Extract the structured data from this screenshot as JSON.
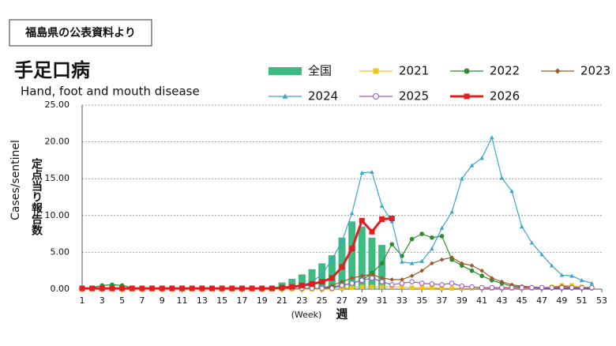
{
  "source_note": "福島県の公表資料より",
  "chart_data": {
    "type": "line",
    "title": "手足口病",
    "subtitle": "Hand, foot and mouth disease",
    "y_label": "Cases/sentinel",
    "y_label_ja": "定点当り報告数",
    "x_label": "(Week)",
    "x_label_ja": "週",
    "x": [
      1,
      2,
      3,
      4,
      5,
      6,
      7,
      8,
      9,
      10,
      11,
      12,
      13,
      14,
      15,
      16,
      17,
      18,
      19,
      20,
      21,
      22,
      23,
      24,
      25,
      26,
      27,
      28,
      29,
      30,
      31,
      32,
      33,
      34,
      35,
      36,
      37,
      38,
      39,
      40,
      41,
      42,
      43,
      44,
      45,
      46,
      47,
      48,
      49,
      50,
      51,
      52
    ],
    "xlim": [
      1,
      53
    ],
    "xticks": [
      1,
      3,
      5,
      7,
      9,
      11,
      13,
      15,
      17,
      19,
      21,
      23,
      25,
      27,
      29,
      31,
      33,
      35,
      37,
      39,
      41,
      43,
      45,
      47,
      49,
      51,
      53
    ],
    "ylim": [
      0,
      25
    ],
    "yticks": [
      {
        "value": 0,
        "label": "0.00"
      },
      {
        "value": 5,
        "label": "5.00"
      },
      {
        "value": 10,
        "label": "10.00"
      },
      {
        "value": 15,
        "label": "15.00"
      },
      {
        "value": 20,
        "label": "20.00"
      },
      {
        "value": 25,
        "label": "25.00"
      }
    ],
    "grid": true,
    "series": [
      {
        "name": "全国",
        "color": "#3dbb83",
        "marker": "bar",
        "values": [
          0.1,
          0.1,
          0.1,
          0.1,
          0.1,
          0.1,
          0.1,
          0.1,
          0.1,
          0.1,
          0.1,
          0.1,
          0.1,
          0.1,
          0.1,
          0.1,
          0.1,
          0.1,
          0.1,
          0.3,
          0.9,
          1.4,
          2.0,
          2.7,
          3.5,
          4.6,
          7.0,
          9.2,
          8.5,
          7.0,
          6.0,
          null,
          null,
          null,
          null,
          null,
          null,
          null,
          null,
          null,
          null,
          null,
          null,
          null,
          null,
          null,
          null,
          null,
          null,
          null,
          null,
          null
        ]
      },
      {
        "name": "2021",
        "color": "#f2c21b",
        "marker": "square",
        "values": [
          0,
          0,
          0,
          0,
          0,
          0,
          0,
          0,
          0,
          0,
          0,
          0,
          0,
          0,
          0,
          0,
          0,
          0,
          0,
          0,
          0,
          0,
          0,
          0,
          0,
          0,
          0.1,
          0.2,
          0.3,
          0.3,
          0.3,
          0.3,
          0.3,
          0.2,
          0.2,
          0.2,
          0.1,
          0.1,
          0.1,
          0.1,
          0.1,
          0.1,
          0.1,
          0.1,
          0.1,
          0.1,
          0.2,
          0.3,
          0.5,
          0.5,
          0.3,
          0.2
        ]
      },
      {
        "name": "2022",
        "color": "#2e8b2e",
        "marker": "circle",
        "values": [
          0.1,
          0.2,
          0.5,
          0.6,
          0.5,
          0.2,
          0.1,
          0.1,
          0.1,
          0.1,
          0.1,
          0.1,
          0.1,
          0.1,
          0.1,
          0.1,
          0.1,
          0.1,
          0.1,
          0.1,
          0.1,
          0.1,
          0.1,
          0.1,
          0.1,
          0.3,
          0.5,
          0.8,
          1.2,
          2.2,
          3.5,
          6.1,
          4.5,
          6.8,
          7.5,
          7.0,
          7.2,
          4.0,
          3.2,
          2.5,
          1.8,
          1.2,
          0.8,
          0.4,
          0.3,
          0.2,
          0.1,
          0.1,
          0.1,
          0.1,
          0.1,
          0.1
        ]
      },
      {
        "name": "2023",
        "color": "#9c5a28",
        "marker": "diamond",
        "values": [
          0.1,
          0.1,
          0.1,
          0.1,
          0.1,
          0.1,
          0.1,
          0.1,
          0.1,
          0.1,
          0.1,
          0.1,
          0.1,
          0.1,
          0.1,
          0.1,
          0.1,
          0.1,
          0.1,
          0.1,
          0.1,
          0.1,
          0.1,
          0.1,
          0.1,
          0.5,
          1.0,
          1.5,
          1.8,
          2.0,
          1.5,
          1.3,
          1.3,
          1.8,
          2.5,
          3.5,
          4.0,
          4.3,
          3.5,
          3.2,
          2.5,
          1.5,
          1.0,
          0.6,
          0.4,
          0.3,
          0.2,
          0.2,
          0.4,
          0.3,
          0.2,
          0.2
        ]
      },
      {
        "name": "2024",
        "color": "#3aa6c8",
        "marker": "triangle",
        "values": [
          0.1,
          0.1,
          0.1,
          0.1,
          0.1,
          0.1,
          0.1,
          0.1,
          0.1,
          0.1,
          0.1,
          0.1,
          0.1,
          0.1,
          0.1,
          0.1,
          0.1,
          0.1,
          0.1,
          0.1,
          0.2,
          0.3,
          0.5,
          1.0,
          2.0,
          4.0,
          6.5,
          10.3,
          15.8,
          15.9,
          11.3,
          9.2,
          3.7,
          3.5,
          3.8,
          5.5,
          8.3,
          10.5,
          15.0,
          16.8,
          17.8,
          20.6,
          15.1,
          13.3,
          8.5,
          6.3,
          4.7,
          3.2,
          1.9,
          1.8,
          1.2,
          0.8
        ]
      },
      {
        "name": "2025",
        "color": "#a050c0",
        "marker": "open-circle",
        "values": [
          0.1,
          0.1,
          0.1,
          0.1,
          0.1,
          0.1,
          0.1,
          0.1,
          0.1,
          0.1,
          0.1,
          0.1,
          0.1,
          0.1,
          0.1,
          0.1,
          0.1,
          0.1,
          0.1,
          0.1,
          0.1,
          0.1,
          0.1,
          0.1,
          0.1,
          0.1,
          0.5,
          0.8,
          1.2,
          1.5,
          1.0,
          0.6,
          0.8,
          1.0,
          0.8,
          0.7,
          0.6,
          0.8,
          0.4,
          0.3,
          0.2,
          0.2,
          0.2,
          0.2,
          0.2,
          0.2,
          0.2,
          0.2,
          0.2,
          0.2,
          0.2,
          0.2
        ]
      },
      {
        "name": "2026",
        "color": "#e02020",
        "marker": "square",
        "values": [
          0.1,
          0.1,
          0.1,
          0.1,
          0.1,
          0.1,
          0.1,
          0.1,
          0.1,
          0.1,
          0.1,
          0.1,
          0.1,
          0.1,
          0.1,
          0.1,
          0.1,
          0.1,
          0.1,
          0.1,
          0.2,
          0.3,
          0.5,
          0.7,
          1.0,
          1.5,
          3.0,
          5.5,
          9.3,
          7.8,
          9.5,
          9.6,
          null,
          null,
          null,
          null,
          null,
          null,
          null,
          null,
          null,
          null,
          null,
          null,
          null,
          null,
          null,
          null,
          null,
          null,
          null,
          null
        ]
      }
    ]
  }
}
